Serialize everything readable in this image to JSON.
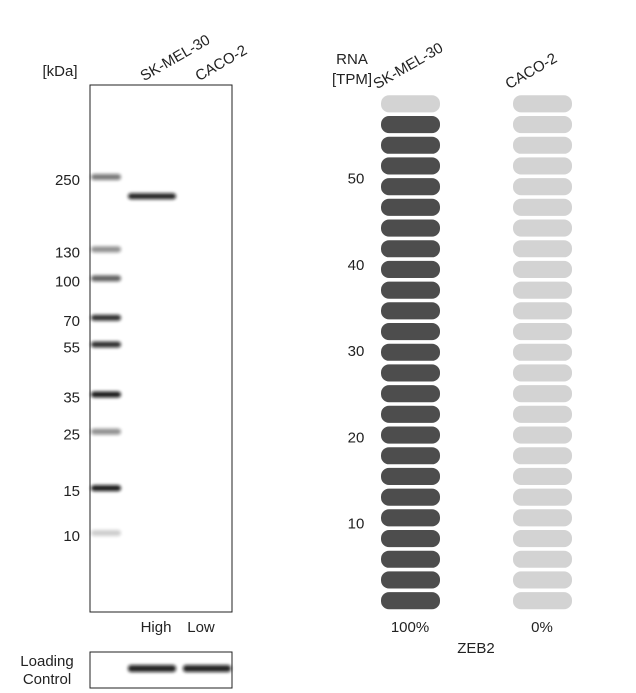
{
  "blot": {
    "unit": "[kDa]",
    "markers": [
      250,
      130,
      100,
      70,
      55,
      35,
      25,
      15,
      10
    ],
    "lanes": [
      {
        "name": "SK-MEL-30",
        "level": "High",
        "band_kda": 210
      },
      {
        "name": "CACO-2",
        "level": "Low"
      }
    ],
    "loading_control": [
      "Loading",
      "Control"
    ]
  },
  "rna": {
    "axis_label": [
      "RNA",
      "[TPM]"
    ],
    "ylim": [
      0,
      60
    ],
    "yticks": [
      10,
      20,
      30,
      40,
      50
    ],
    "pills": 25,
    "lanes": [
      {
        "name": "SK-MEL-30",
        "value": 56,
        "label": "100%",
        "color": "#4d4d4d"
      },
      {
        "name": "CACO-2",
        "value": 0,
        "label": "0%",
        "color": "#4d4d4d"
      }
    ],
    "empty_color": "#d3d3d3",
    "gene": "ZEB2"
  }
}
